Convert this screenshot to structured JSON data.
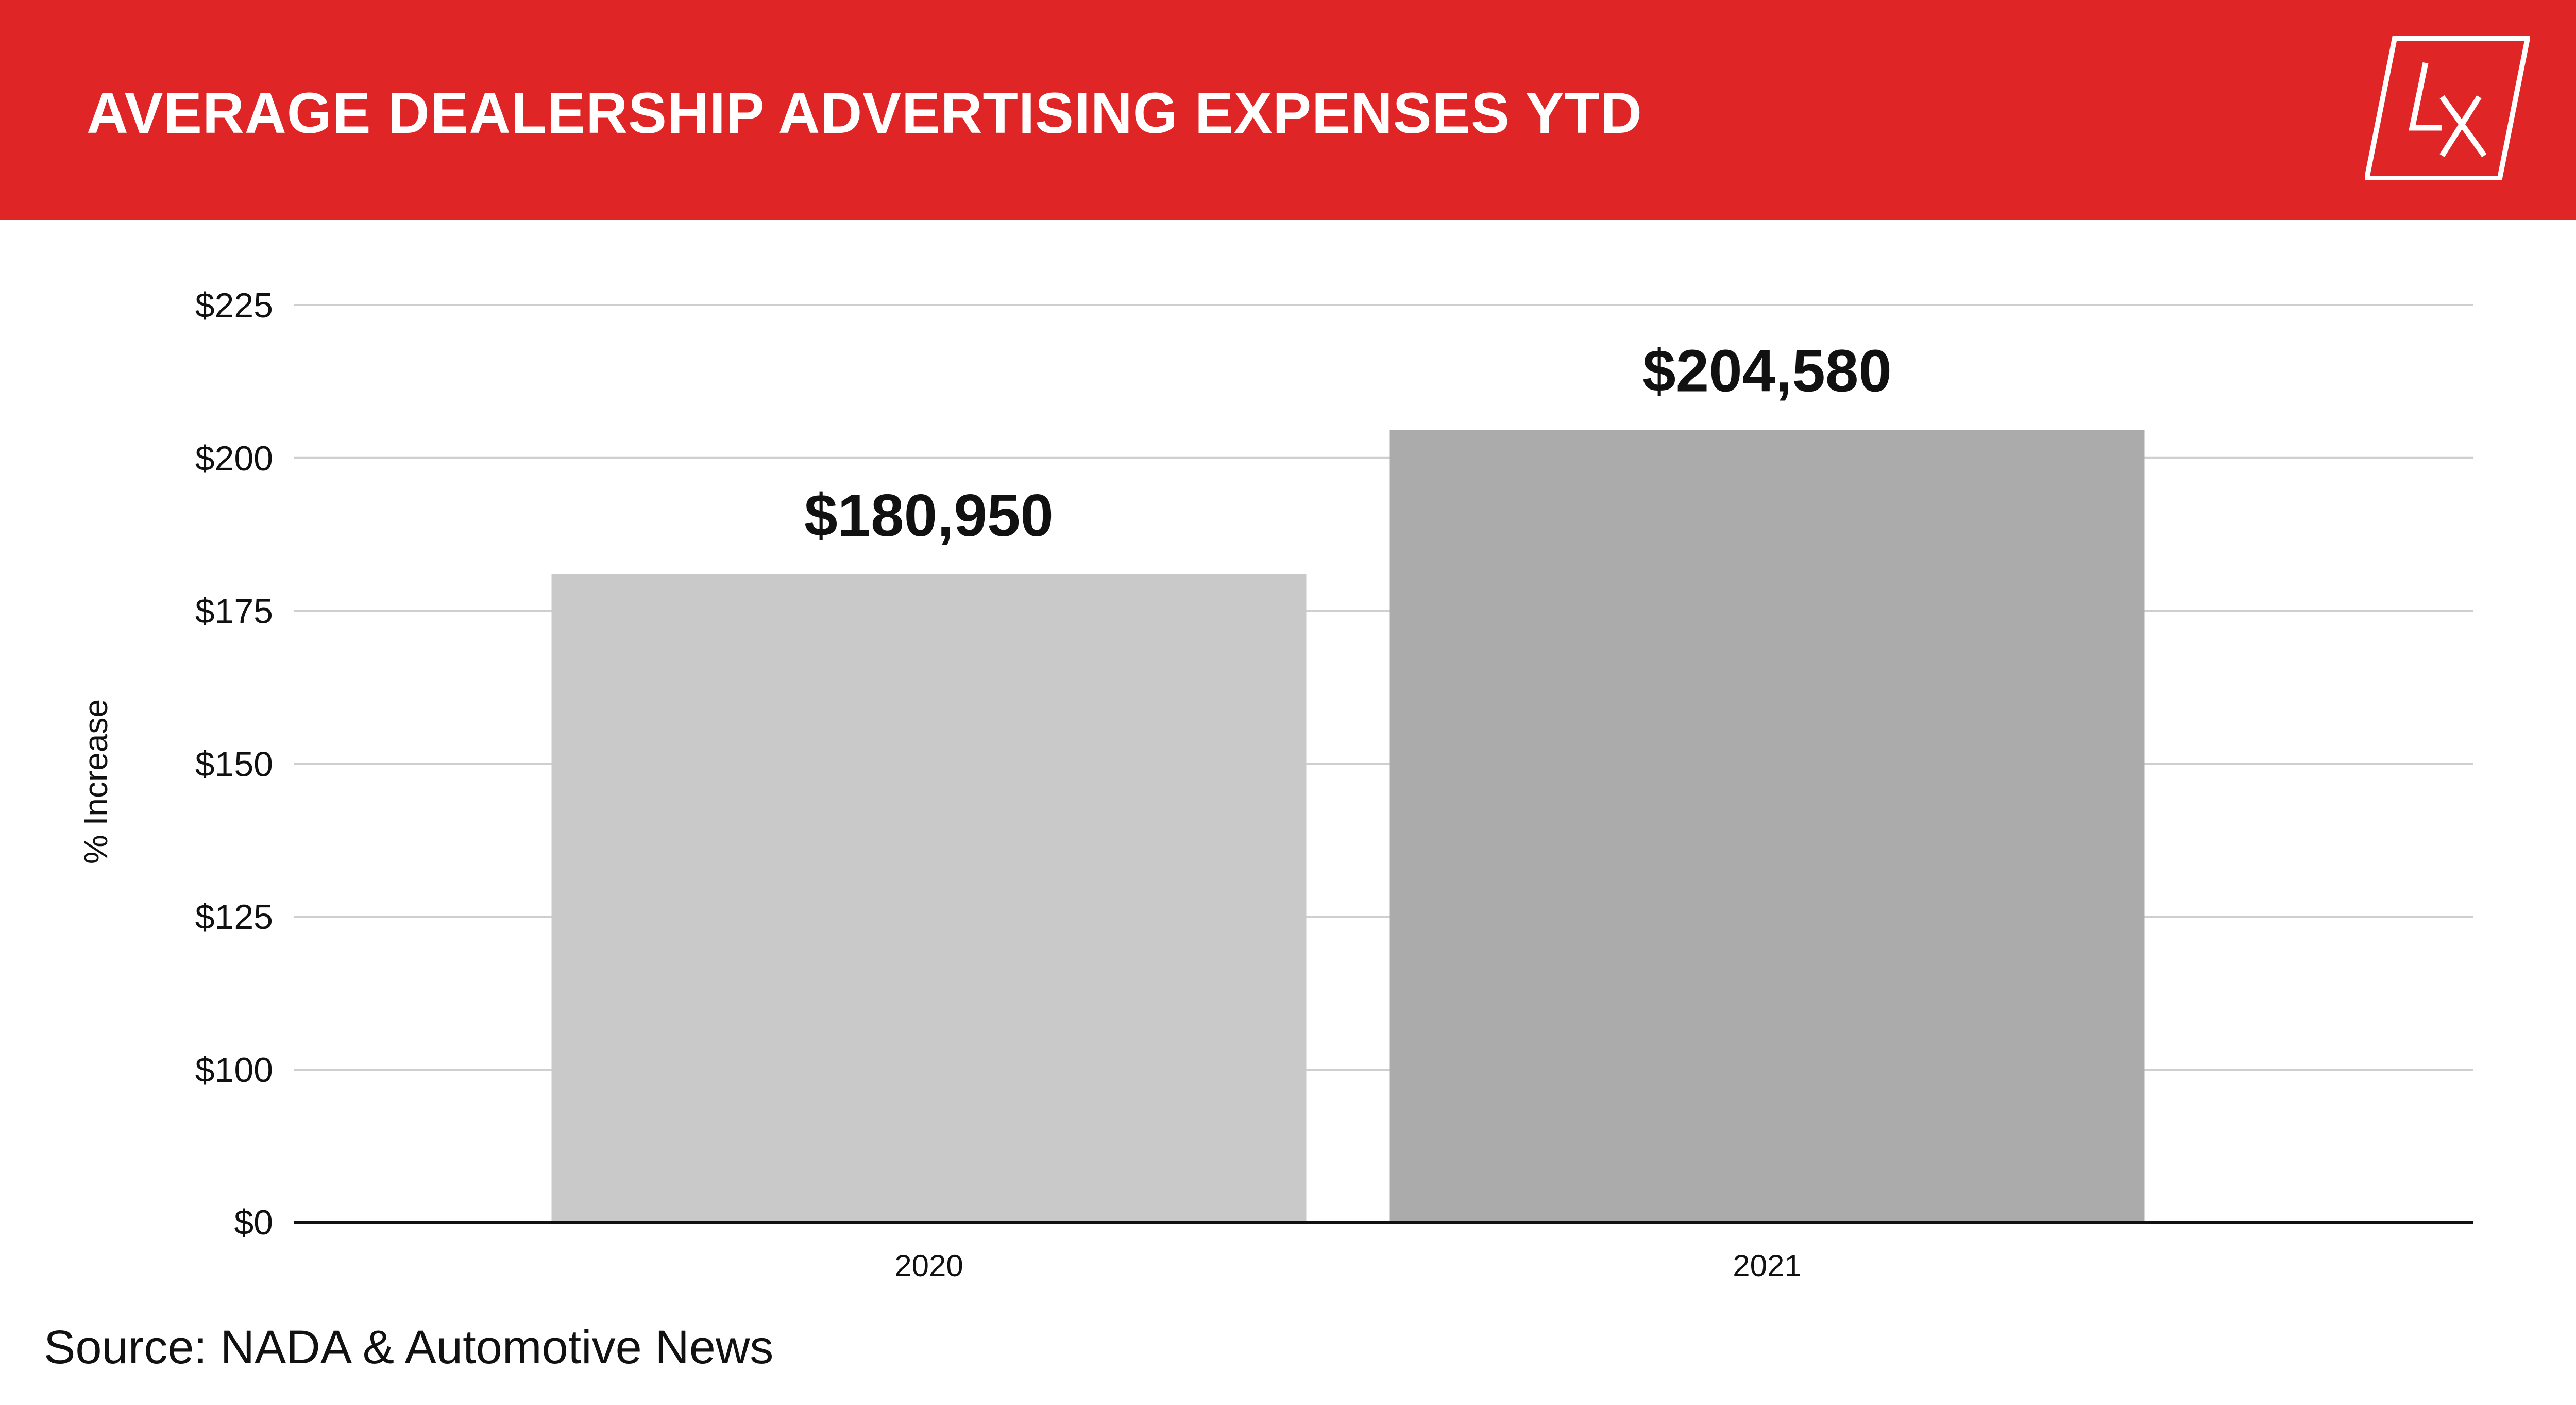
{
  "header": {
    "title": "AVERAGE DEALERSHIP ADVERTISING EXPENSES YTD",
    "background_color": "#e02527",
    "logo_text": "LX"
  },
  "chart_data": {
    "type": "bar",
    "categories": [
      "2020",
      "2021"
    ],
    "values": [
      180950,
      204580
    ],
    "value_labels": [
      "$180,950",
      "$204,580"
    ],
    "bar_colors": [
      "#c9c9c9",
      "#ababab"
    ],
    "ylabel": "% Increase",
    "xlabel": "",
    "ylim": [
      0,
      225000
    ],
    "y_ticks": [
      {
        "label": "$0",
        "value": 0
      },
      {
        "label": "$100",
        "value": 100000
      },
      {
        "label": "$125",
        "value": 125000
      },
      {
        "label": "$150",
        "value": 150000
      },
      {
        "label": "$175",
        "value": 175000
      },
      {
        "label": "$200",
        "value": 200000
      },
      {
        "label": "$225",
        "value": 225000
      }
    ],
    "y_axis_break": "between $0 and $100",
    "grid": true,
    "legend": "none"
  },
  "footer": {
    "source": "Source: NADA & Automotive News"
  }
}
